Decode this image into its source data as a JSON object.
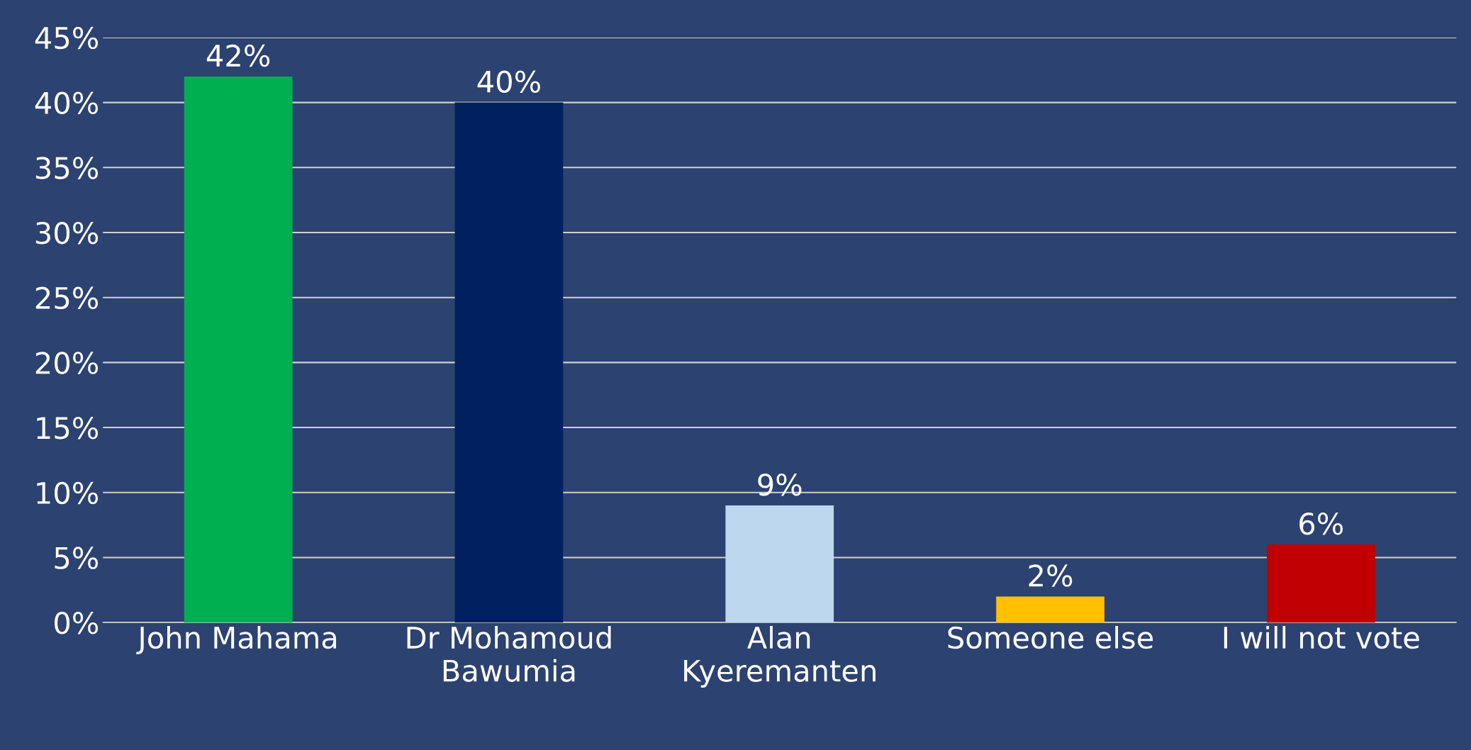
{
  "chart_data": {
    "type": "bar",
    "categories": [
      "John Mahama",
      "Dr Mohamoud\nBawumia",
      "Alan\nKyeremanten",
      "Someone else",
      "I will not vote"
    ],
    "values": [
      42,
      40,
      9,
      2,
      6
    ],
    "colors": [
      "#00b050",
      "#002060",
      "#bdd7ee",
      "#ffc000",
      "#c00000"
    ],
    "value_labels": [
      "42%",
      "40%",
      "9%",
      "2%",
      "6%"
    ],
    "ylim": [
      0,
      45
    ],
    "yticks": [
      {
        "value": 0,
        "label": "0%"
      },
      {
        "value": 5,
        "label": "5%"
      },
      {
        "value": 10,
        "label": "10%"
      },
      {
        "value": 15,
        "label": "15%"
      },
      {
        "value": 20,
        "label": "20%"
      },
      {
        "value": 25,
        "label": "25%"
      },
      {
        "value": 30,
        "label": "30%"
      },
      {
        "value": 35,
        "label": "35%"
      },
      {
        "value": 40,
        "label": "40%"
      },
      {
        "value": 45,
        "label": "45%"
      }
    ],
    "grid": "y",
    "legend": false
  }
}
